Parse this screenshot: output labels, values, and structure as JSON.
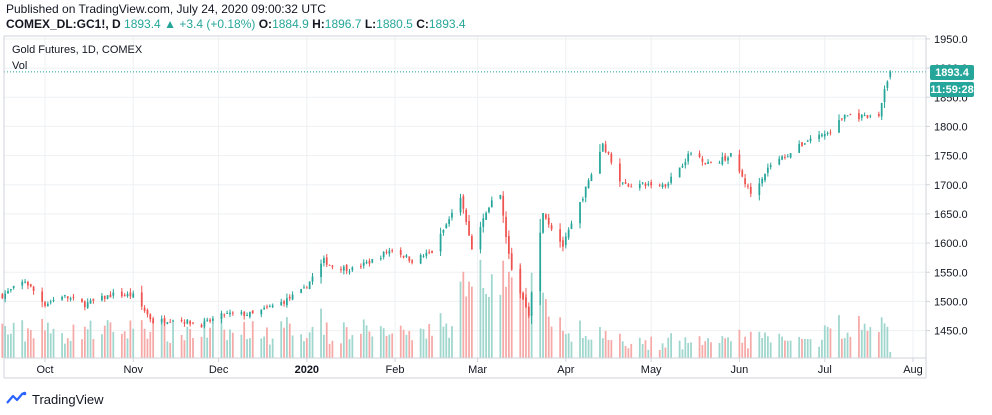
{
  "header": {
    "published": "Published on TradingView.com, July 24, 2020 09:00:32 UTC",
    "symbol": "COMEX_DL:GC1!, D",
    "last": "1893.4",
    "change": "+3.4 (+0.18%)",
    "o_label": "O:",
    "o_value": "1884.9",
    "h_label": "H:",
    "h_value": "1896.7",
    "l_label": "L:",
    "l_value": "1880.5",
    "c_label": "C:",
    "c_value": "1893.4"
  },
  "legend": {
    "title": "Gold Futures, 1D, COMEX",
    "vol_label": "Vol"
  },
  "price_tag": "1893.4",
  "countdown": "11:59:28",
  "brand": "TradingView",
  "colors": {
    "up": "#26a69a",
    "down": "#ef5350",
    "vol_up": "#9fd6cd",
    "vol_down": "#f5aaa8",
    "grid": "#eef0f3",
    "axis": "#cfd3da"
  },
  "chart_data": {
    "type": "candlestick",
    "title": "Gold Futures, 1D, COMEX",
    "y_ticks": [
      1950,
      1900,
      1850,
      1800,
      1750,
      1700,
      1650,
      1600,
      1550,
      1500,
      1450
    ],
    "y_tick_labels": [
      "1950.0",
      "1900.0",
      "1850.0",
      "1800.0",
      "1750.0",
      "1700.0",
      "1650.0",
      "1600.0",
      "1550.0",
      "1500.0",
      "1450.0"
    ],
    "ylim": [
      1403,
      1955
    ],
    "x_ticks": [
      {
        "label": "Oct",
        "date": "2019-10-01"
      },
      {
        "label": "Nov",
        "date": "2019-11-01"
      },
      {
        "label": "Dec",
        "date": "2019-12-01"
      },
      {
        "label": "2020",
        "date": "2020-01-01"
      },
      {
        "label": "Feb",
        "date": "2020-02-01"
      },
      {
        "label": "Mar",
        "date": "2020-03-01"
      },
      {
        "label": "Apr",
        "date": "2020-04-01"
      },
      {
        "label": "May",
        "date": "2020-05-01"
      },
      {
        "label": "Jun",
        "date": "2020-06-01"
      },
      {
        "label": "Jul",
        "date": "2020-07-01"
      },
      {
        "label": "Aug",
        "date": "2020-08-01"
      }
    ],
    "last_price": 1893.4,
    "close_path": [
      {
        "date": "2019-09-16",
        "close": 1510
      },
      {
        "date": "2019-09-24",
        "close": 1535
      },
      {
        "date": "2019-10-01",
        "close": 1495
      },
      {
        "date": "2019-10-07",
        "close": 1510
      },
      {
        "date": "2019-10-15",
        "close": 1495
      },
      {
        "date": "2019-10-25",
        "close": 1512
      },
      {
        "date": "2019-11-01",
        "close": 1510
      },
      {
        "date": "2019-11-08",
        "close": 1465
      },
      {
        "date": "2019-11-15",
        "close": 1470
      },
      {
        "date": "2019-11-25",
        "close": 1460
      },
      {
        "date": "2019-12-03",
        "close": 1478
      },
      {
        "date": "2019-12-13",
        "close": 1478
      },
      {
        "date": "2019-12-24",
        "close": 1500
      },
      {
        "date": "2019-12-31",
        "close": 1520
      },
      {
        "date": "2020-01-07",
        "close": 1570
      },
      {
        "date": "2020-01-10",
        "close": 1560
      },
      {
        "date": "2020-01-17",
        "close": 1555
      },
      {
        "date": "2020-01-24",
        "close": 1570
      },
      {
        "date": "2020-01-31",
        "close": 1590
      },
      {
        "date": "2020-02-07",
        "close": 1570
      },
      {
        "date": "2020-02-14",
        "close": 1585
      },
      {
        "date": "2020-02-21",
        "close": 1650
      },
      {
        "date": "2020-02-24",
        "close": 1680
      },
      {
        "date": "2020-02-28",
        "close": 1590
      },
      {
        "date": "2020-03-06",
        "close": 1675
      },
      {
        "date": "2020-03-09",
        "close": 1680
      },
      {
        "date": "2020-03-13",
        "close": 1550
      },
      {
        "date": "2020-03-19",
        "close": 1480
      },
      {
        "date": "2020-03-24",
        "close": 1650
      },
      {
        "date": "2020-03-31",
        "close": 1595
      },
      {
        "date": "2020-04-07",
        "close": 1680
      },
      {
        "date": "2020-04-14",
        "close": 1770
      },
      {
        "date": "2020-04-21",
        "close": 1700
      },
      {
        "date": "2020-04-30",
        "close": 1700
      },
      {
        "date": "2020-05-06",
        "close": 1700
      },
      {
        "date": "2020-05-15",
        "close": 1755
      },
      {
        "date": "2020-05-22",
        "close": 1735
      },
      {
        "date": "2020-05-29",
        "close": 1750
      },
      {
        "date": "2020-06-05",
        "close": 1685
      },
      {
        "date": "2020-06-12",
        "close": 1735
      },
      {
        "date": "2020-06-19",
        "close": 1755
      },
      {
        "date": "2020-06-26",
        "close": 1780
      },
      {
        "date": "2020-07-03",
        "close": 1790
      },
      {
        "date": "2020-07-08",
        "close": 1820
      },
      {
        "date": "2020-07-15",
        "close": 1815
      },
      {
        "date": "2020-07-20",
        "close": 1818
      },
      {
        "date": "2020-07-22",
        "close": 1865
      },
      {
        "date": "2020-07-24",
        "close": 1893.4
      }
    ]
  }
}
